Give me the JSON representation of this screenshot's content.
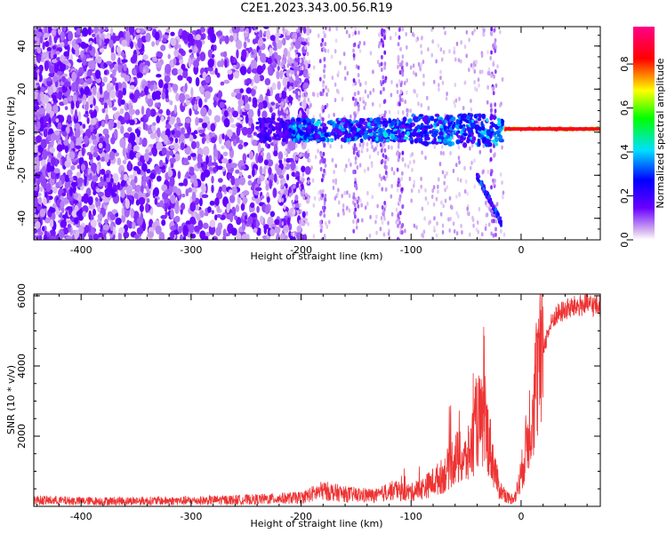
{
  "title": "C2E1.2023.343.00.56.R19",
  "chart_data": [
    {
      "type": "heatmap",
      "xlabel": "Height of straight line (km)",
      "ylabel": "Frequency (Hz)",
      "xlim": [
        -443,
        72
      ],
      "ylim": [
        -50,
        49
      ],
      "x_ticks": [
        -400,
        -300,
        -200,
        -100,
        0
      ],
      "x_tick_labels": [
        "-400",
        "-300",
        "-200",
        "-100",
        "0"
      ],
      "y_ticks": [
        -40,
        -20,
        0,
        20,
        40
      ],
      "y_tick_labels": [
        "-40",
        "-20",
        "0",
        "20",
        "40"
      ],
      "grid": false,
      "colorbar": {
        "label": "Normalized spectral amplitude",
        "range": [
          0,
          0.97
        ],
        "ticks": [
          0.0,
          0.2,
          0.4,
          0.6,
          0.8
        ],
        "tick_labels": [
          "0.0",
          "0.2",
          "0.4",
          "0.6",
          "0.8"
        ],
        "colormap": "rainbow"
      },
      "features": [
        {
          "name": "broadband noise",
          "x_range": [
            -443,
            -200
          ],
          "freq_range": [
            -50,
            49
          ],
          "amplitude": 0.1
        },
        {
          "name": "central band",
          "x_range": [
            -200,
            -15
          ],
          "freq_center": 1,
          "amplitude": 0.35
        },
        {
          "name": "chirp",
          "x_range": [
            -40,
            -18
          ],
          "freq_range": [
            -20,
            -42
          ],
          "amplitude": 0.25
        },
        {
          "name": "carrier line",
          "x_range": [
            -15,
            72
          ],
          "freq_center": 1.5,
          "amplitude": 0.9
        }
      ]
    },
    {
      "type": "line",
      "xlabel": "Height of straight line (km)",
      "ylabel": "SNR (10 * v/v)",
      "xlim": [
        -443,
        72
      ],
      "ylim": [
        0,
        6050
      ],
      "x_ticks": [
        -400,
        -300,
        -200,
        -100,
        0
      ],
      "x_tick_labels": [
        "-400",
        "-300",
        "-200",
        "-100",
        "0"
      ],
      "y_ticks": [
        2000,
        4000,
        6000
      ],
      "y_tick_labels": [
        "2000",
        "4000",
        "6000"
      ],
      "grid": false,
      "series": [
        {
          "color": "#ee3333",
          "x": [
            -443,
            -400,
            -300,
            -240,
            -200,
            -180,
            -160,
            -150,
            -130,
            -120,
            -100,
            -90,
            -80,
            -70,
            -60,
            -50,
            -45,
            -40,
            -35,
            -30,
            -25,
            -20,
            -15,
            -10,
            -5,
            0,
            5,
            10,
            15,
            20,
            25,
            30,
            40,
            50,
            60,
            72
          ],
          "y": [
            180,
            150,
            160,
            200,
            250,
            450,
            350,
            330,
            300,
            450,
            400,
            500,
            700,
            900,
            1400,
            1300,
            1700,
            2500,
            2300,
            2000,
            1200,
            500,
            350,
            200,
            300,
            900,
            1800,
            2800,
            3800,
            4500,
            5000,
            5400,
            5600,
            5700,
            5750,
            5700
          ]
        }
      ]
    }
  ]
}
